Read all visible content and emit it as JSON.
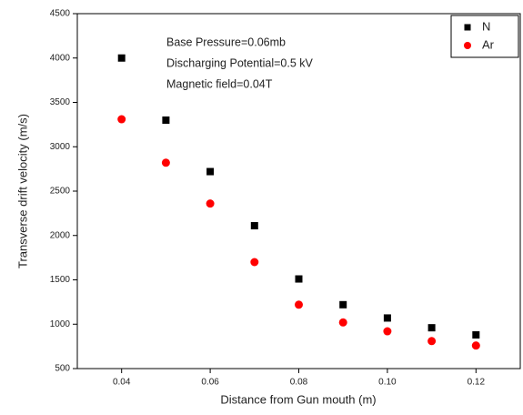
{
  "chart_data": {
    "type": "scatter",
    "x_label": "Distance from Gun mouth (m)",
    "y_label": "Transverse drift velocity (m/s)",
    "annotations": [
      "Base Pressure=0.06mb",
      "Discharging Potential=0.5 kV",
      "Magnetic field=0.04T"
    ],
    "x": [
      0.04,
      0.05,
      0.06,
      0.07,
      0.08,
      0.09,
      0.1,
      0.11,
      0.12
    ],
    "series": [
      {
        "name": "N",
        "color": "#000000",
        "marker": "square",
        "values": [
          4000,
          3300,
          2720,
          2110,
          1510,
          1220,
          1070,
          960,
          880
        ]
      },
      {
        "name": "Ar",
        "color": "#ff0000",
        "marker": "circle",
        "values": [
          3310,
          2820,
          2360,
          1700,
          1220,
          1020,
          920,
          810,
          760
        ]
      }
    ],
    "xlim": [
      0.03,
      0.13
    ],
    "xticks": [
      0.04,
      0.06,
      0.08,
      {
        "value": 0.1,
        "label": "0.10"
      },
      0.12
    ],
    "ylim": [
      500,
      4500
    ],
    "yticks": [
      500,
      1000,
      1500,
      2000,
      2500,
      3000,
      3500,
      4000,
      4500
    ],
    "legend": "upper right"
  }
}
